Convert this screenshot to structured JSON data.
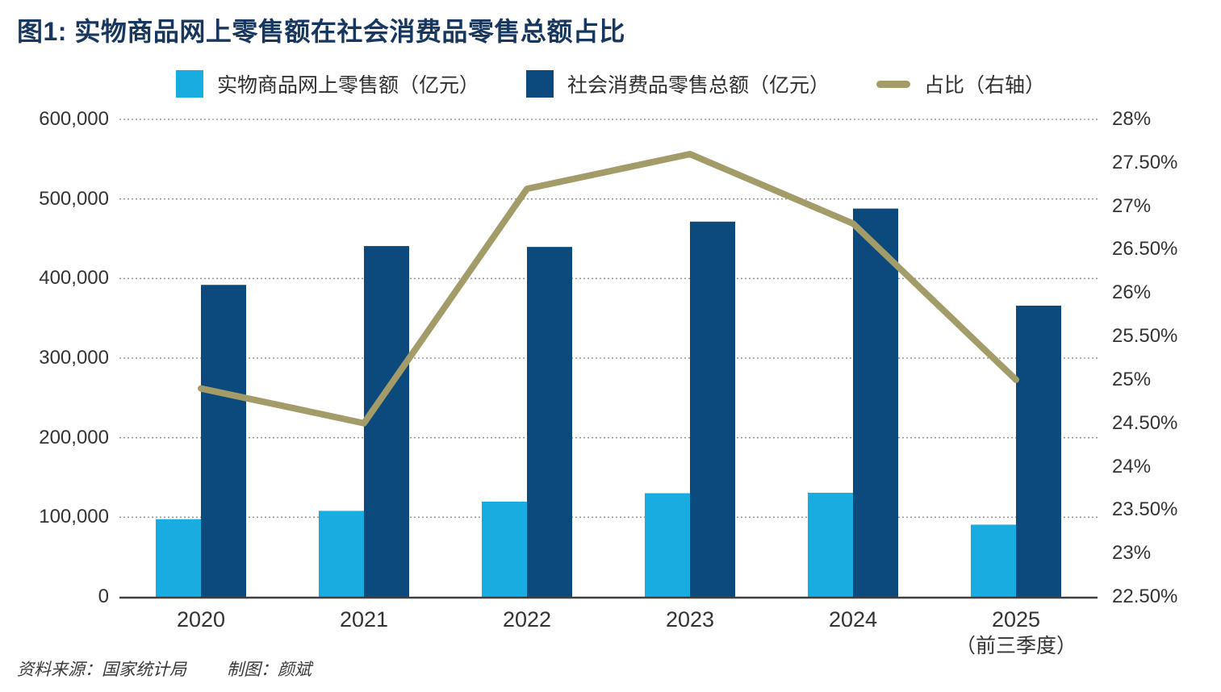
{
  "title": "图1: 实物商品网上零售额在社会消费品零售总额占比",
  "footer": {
    "source": "资料来源：国家统计局",
    "credit": "制图：颜斌"
  },
  "colors": {
    "online_retail_bar": "#18ACE0",
    "total_retail_bar": "#0C4A7D",
    "ratio_line": "#A39B68",
    "title_text": "#17375E",
    "axis_text": "#333333",
    "gridline": "#999999",
    "axis_line": "#404040"
  },
  "chart_data": {
    "type": "bar",
    "subtype": "grouped bars with secondary-axis line",
    "title": "图1: 实物商品网上零售额在社会消费品零售总额占比",
    "categories": [
      "2020",
      "2021",
      "2022",
      "2023",
      "2024",
      "2025"
    ],
    "category_sublabels": [
      "",
      "",
      "",
      "",
      "",
      "（前三季度）"
    ],
    "series": [
      {
        "name": "实物商品网上零售额（亿元）",
        "type": "bar",
        "axis": "left",
        "color": "#18ACE0",
        "values": [
          97600,
          108000,
          119600,
          130200,
          130800,
          90700
        ]
      },
      {
        "name": "社会消费品零售总额（亿元）",
        "type": "bar",
        "axis": "left",
        "color": "#0C4A7D",
        "values": [
          392000,
          440800,
          439700,
          471500,
          487900,
          365900
        ]
      },
      {
        "name": "占比（右轴）",
        "type": "line",
        "axis": "right",
        "color": "#A39B68",
        "values": [
          24.9,
          24.5,
          27.2,
          27.6,
          26.8,
          25.0
        ]
      }
    ],
    "left_axis": {
      "min": 0,
      "max": 600000,
      "step": 100000,
      "tick_labels": [
        "0",
        "100,000",
        "200,000",
        "300,000",
        "400,000",
        "500,000",
        "600,000"
      ]
    },
    "right_axis": {
      "min": 22.5,
      "max": 28,
      "step": 0.5,
      "tick_labels": [
        "22.50%",
        "23%",
        "23.50%",
        "24%",
        "24.50%",
        "25%",
        "25.50%",
        "26%",
        "26.50%",
        "27%",
        "27.50%",
        "28%"
      ]
    },
    "grid": true,
    "legend_position": "top"
  }
}
